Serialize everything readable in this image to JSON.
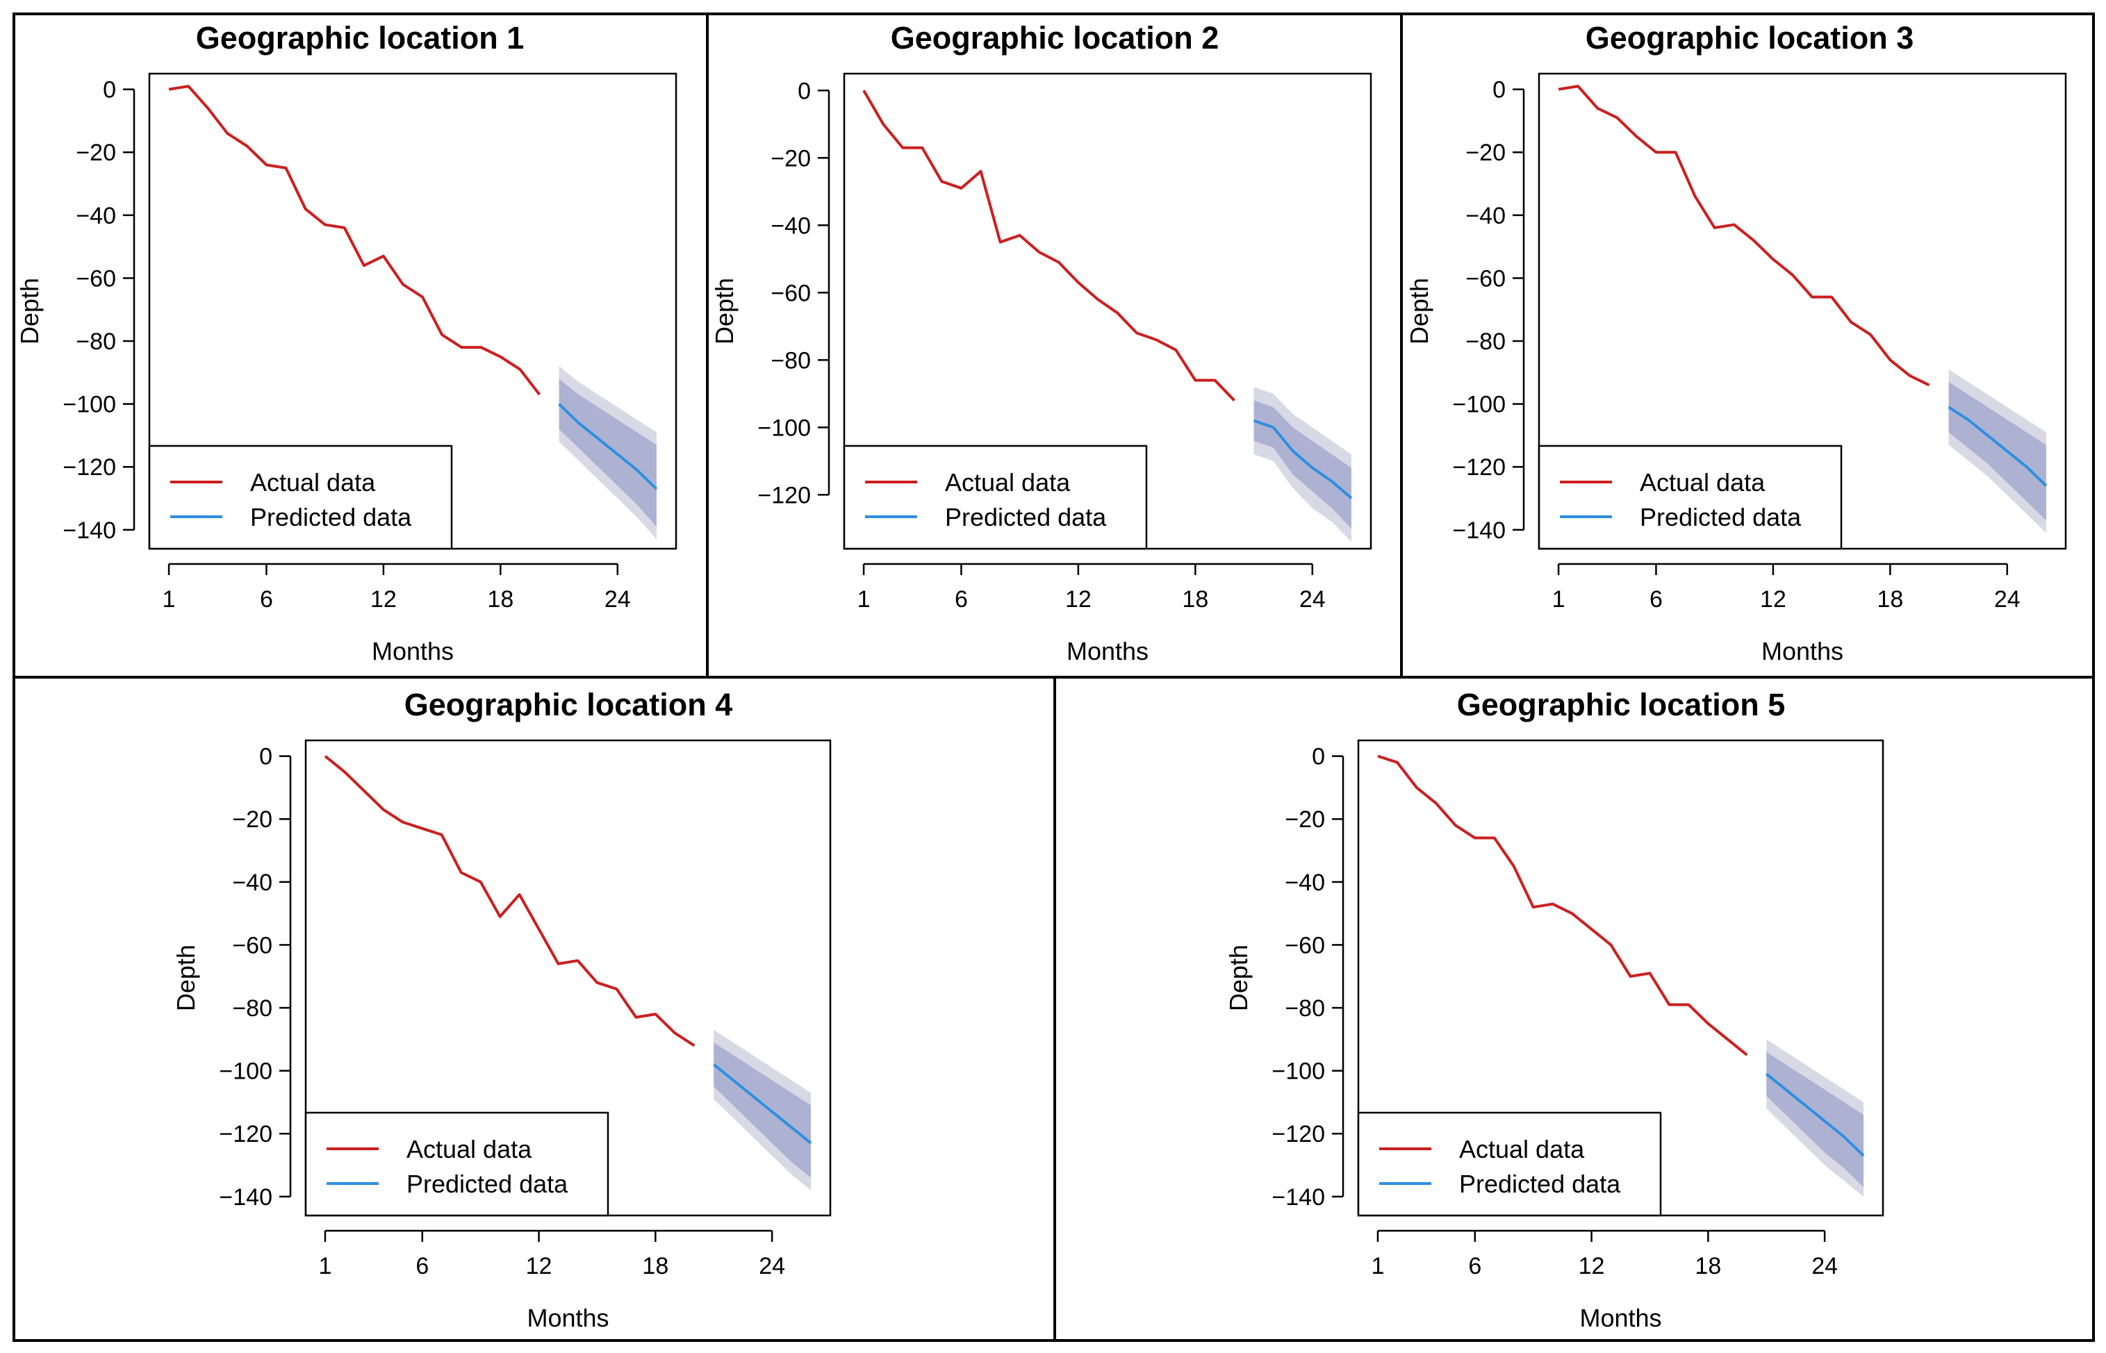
{
  "colors": {
    "actual": "#cc1f1f",
    "predicted": "#2e8fe0",
    "band_outer": "#d9d9e6",
    "band_inner": "#9ea4cc"
  },
  "chart_data": [
    {
      "type": "line",
      "title": "Geographic location 1",
      "xlabel": "Months",
      "ylabel": "Depth",
      "xticks": [
        1,
        6,
        12,
        18,
        24
      ],
      "yticks": [
        0,
        -20,
        -40,
        -60,
        -80,
        -100,
        -120,
        -140
      ],
      "xlim": [
        0,
        27
      ],
      "ylim": [
        -146,
        5
      ],
      "legend_position": "bottom-left",
      "series": [
        {
          "name": "Actual data",
          "x": [
            1,
            2,
            3,
            4,
            5,
            6,
            7,
            8,
            9,
            10,
            11,
            12,
            13,
            14,
            15,
            16,
            17,
            18,
            19,
            20
          ],
          "y": [
            0,
            1,
            -6,
            -14,
            -18,
            -24,
            -25,
            -38,
            -43,
            -44,
            -56,
            -53,
            -62,
            -66,
            -78,
            -82,
            -82,
            -85,
            -89,
            -97
          ]
        },
        {
          "name": "Predicted data",
          "x": [
            21,
            22,
            23,
            24,
            25,
            26
          ],
          "y": [
            -100,
            -106,
            -111,
            -116,
            -121,
            -127
          ],
          "band_80": [
            [
              -92,
              -108
            ],
            [
              -97,
              -114
            ],
            [
              -101,
              -120
            ],
            [
              -105,
              -126
            ],
            [
              -109,
              -132
            ],
            [
              -113,
              -139
            ]
          ],
          "band_95": [
            [
              -88,
              -112
            ],
            [
              -93,
              -118
            ],
            [
              -97,
              -124
            ],
            [
              -101,
              -130
            ],
            [
              -105,
              -136
            ],
            [
              -109,
              -143
            ]
          ]
        }
      ]
    },
    {
      "type": "line",
      "title": "Geographic location 2",
      "xlabel": "Months",
      "ylabel": "Depth",
      "xticks": [
        1,
        6,
        12,
        18,
        24
      ],
      "yticks": [
        0,
        -20,
        -40,
        -60,
        -80,
        -100,
        -120
      ],
      "xlim": [
        0,
        27
      ],
      "ylim": [
        -136,
        5
      ],
      "legend_position": "bottom-left",
      "series": [
        {
          "name": "Actual data",
          "x": [
            1,
            2,
            3,
            4,
            5,
            6,
            7,
            8,
            9,
            10,
            11,
            12,
            13,
            14,
            15,
            16,
            17,
            18,
            19,
            20
          ],
          "y": [
            0,
            -10,
            -17,
            -17,
            -27,
            -29,
            -24,
            -45,
            -43,
            -48,
            -51,
            -57,
            -62,
            -66,
            -72,
            -74,
            -77,
            -86,
            -86,
            -92
          ],
          "segments_note": ""
        },
        {
          "name": "Predicted data",
          "x": [
            21,
            22,
            23,
            24,
            25,
            26
          ],
          "y": [
            -98,
            -100,
            -107,
            -112,
            -116,
            -121
          ],
          "band_80": [
            [
              -92,
              -104
            ],
            [
              -94,
              -106
            ],
            [
              -100,
              -114
            ],
            [
              -104,
              -119
            ],
            [
              -108,
              -124
            ],
            [
              -112,
              -130
            ]
          ],
          "band_95": [
            [
              -88,
              -108
            ],
            [
              -90,
              -110
            ],
            [
              -96,
              -118
            ],
            [
              -100,
              -124
            ],
            [
              -104,
              -128
            ],
            [
              -108,
              -134
            ]
          ]
        }
      ]
    },
    {
      "type": "line",
      "title": "Geographic location 3",
      "xlabel": "Months",
      "ylabel": "Depth",
      "xticks": [
        1,
        6,
        12,
        18,
        24
      ],
      "yticks": [
        0,
        -20,
        -40,
        -60,
        -80,
        -100,
        -120,
        -140
      ],
      "xlim": [
        0,
        27
      ],
      "ylim": [
        -146,
        5
      ],
      "legend_position": "bottom-left",
      "series": [
        {
          "name": "Actual data",
          "x": [
            1,
            2,
            3,
            4,
            5,
            6,
            7,
            8,
            9,
            10,
            11,
            12,
            13,
            14,
            15,
            16,
            17,
            18,
            19,
            20
          ],
          "y": [
            0,
            1,
            -6,
            -9,
            -15,
            -20,
            -20,
            -34,
            -44,
            -43,
            -48,
            -54,
            -59,
            -66,
            -66,
            -74,
            -78,
            -86,
            -91,
            -94
          ]
        },
        {
          "name": "Predicted data",
          "x": [
            21,
            22,
            23,
            24,
            25,
            26
          ],
          "y": [
            -101,
            -105,
            -110,
            -115,
            -120,
            -126
          ],
          "band_80": [
            [
              -93,
              -109
            ],
            [
              -97,
              -114
            ],
            [
              -101,
              -119
            ],
            [
              -105,
              -125
            ],
            [
              -109,
              -131
            ],
            [
              -113,
              -137
            ]
          ],
          "band_95": [
            [
              -89,
              -113
            ],
            [
              -93,
              -118
            ],
            [
              -97,
              -123
            ],
            [
              -101,
              -129
            ],
            [
              -105,
              -135
            ],
            [
              -109,
              -141
            ]
          ]
        }
      ]
    },
    {
      "type": "line",
      "title": "Geographic location 4",
      "xlabel": "Months",
      "ylabel": "Depth",
      "xticks": [
        1,
        6,
        12,
        18,
        24
      ],
      "yticks": [
        0,
        -20,
        -40,
        -60,
        -80,
        -100,
        -120,
        -140
      ],
      "xlim": [
        0,
        27
      ],
      "ylim": [
        -146,
        5
      ],
      "legend_position": "bottom-left",
      "series": [
        {
          "name": "Actual data",
          "x": [
            1,
            2,
            3,
            4,
            5,
            6,
            7,
            8,
            9,
            10,
            11,
            12,
            13,
            14,
            15,
            16,
            17,
            18,
            19,
            20
          ],
          "y": [
            0,
            -5,
            -11,
            -17,
            -21,
            -23,
            -25,
            -37,
            -40,
            -51,
            -44,
            -55,
            -66,
            -65,
            -72,
            -74,
            -83,
            -82,
            -88,
            -92
          ]
        },
        {
          "name": "Predicted data",
          "x": [
            21,
            22,
            23,
            24,
            25,
            26
          ],
          "y": [
            -98,
            -103,
            -108,
            -113,
            -118,
            -123
          ],
          "band_80": [
            [
              -91,
              -105
            ],
            [
              -95,
              -111
            ],
            [
              -99,
              -117
            ],
            [
              -103,
              -123
            ],
            [
              -107,
              -129
            ],
            [
              -111,
              -134
            ]
          ],
          "band_95": [
            [
              -87,
              -109
            ],
            [
              -91,
              -115
            ],
            [
              -95,
              -121
            ],
            [
              -99,
              -127
            ],
            [
              -103,
              -133
            ],
            [
              -107,
              -138
            ]
          ]
        }
      ]
    },
    {
      "type": "line",
      "title": "Geographic location 5",
      "xlabel": "Months",
      "ylabel": "Depth",
      "xticks": [
        1,
        6,
        12,
        18,
        24
      ],
      "yticks": [
        0,
        -20,
        -40,
        -60,
        -80,
        -100,
        -120,
        -140
      ],
      "xlim": [
        0,
        27
      ],
      "ylim": [
        -146,
        5
      ],
      "legend_position": "bottom-left",
      "series": [
        {
          "name": "Actual data",
          "x": [
            1,
            2,
            3,
            4,
            5,
            6,
            7,
            8,
            9,
            10,
            11,
            12,
            13,
            14,
            15,
            16,
            17,
            18,
            19,
            20
          ],
          "y": [
            0,
            -2,
            -10,
            -15,
            -22,
            -26,
            -26,
            -35,
            -48,
            -47,
            -50,
            -55,
            -60,
            -70,
            -69,
            -79,
            -79,
            -85,
            -90,
            -95
          ]
        },
        {
          "name": "Predicted data",
          "x": [
            21,
            22,
            23,
            24,
            25,
            26
          ],
          "y": [
            -101,
            -106,
            -111,
            -116,
            -121,
            -127
          ],
          "band_80": [
            [
              -94,
              -108
            ],
            [
              -98,
              -114
            ],
            [
              -102,
              -120
            ],
            [
              -106,
              -126
            ],
            [
              -110,
              -131
            ],
            [
              -114,
              -137
            ]
          ],
          "band_95": [
            [
              -90,
              -112
            ],
            [
              -94,
              -118
            ],
            [
              -98,
              -124
            ],
            [
              -102,
              -130
            ],
            [
              -106,
              -135
            ],
            [
              -110,
              -140
            ]
          ]
        }
      ]
    }
  ]
}
